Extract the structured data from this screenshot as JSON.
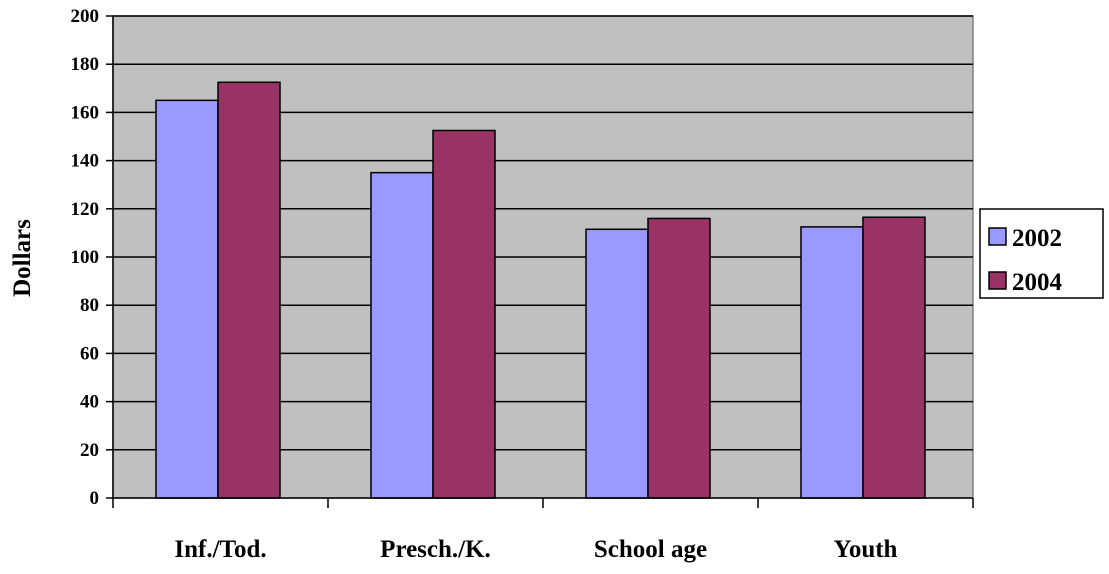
{
  "chart_data": {
    "type": "bar",
    "categories": [
      "Inf./Tod.",
      "Presch./K.",
      "School age",
      "Youth"
    ],
    "series": [
      {
        "name": "2002",
        "values": [
          165,
          135,
          111.5,
          112.5
        ],
        "color": "#9999ff"
      },
      {
        "name": "2004",
        "values": [
          172.5,
          152.5,
          116,
          116.5
        ],
        "color": "#993366"
      }
    ],
    "title": "",
    "xlabel": "",
    "ylabel": "Dollars",
    "ylim": [
      0,
      200
    ],
    "yticks": [
      "0",
      "20",
      "40",
      "60",
      "80",
      "100",
      "120",
      "140",
      "160",
      "180",
      "200"
    ],
    "grid": true,
    "legend": "right",
    "plot_background": "#c0c0c0"
  }
}
